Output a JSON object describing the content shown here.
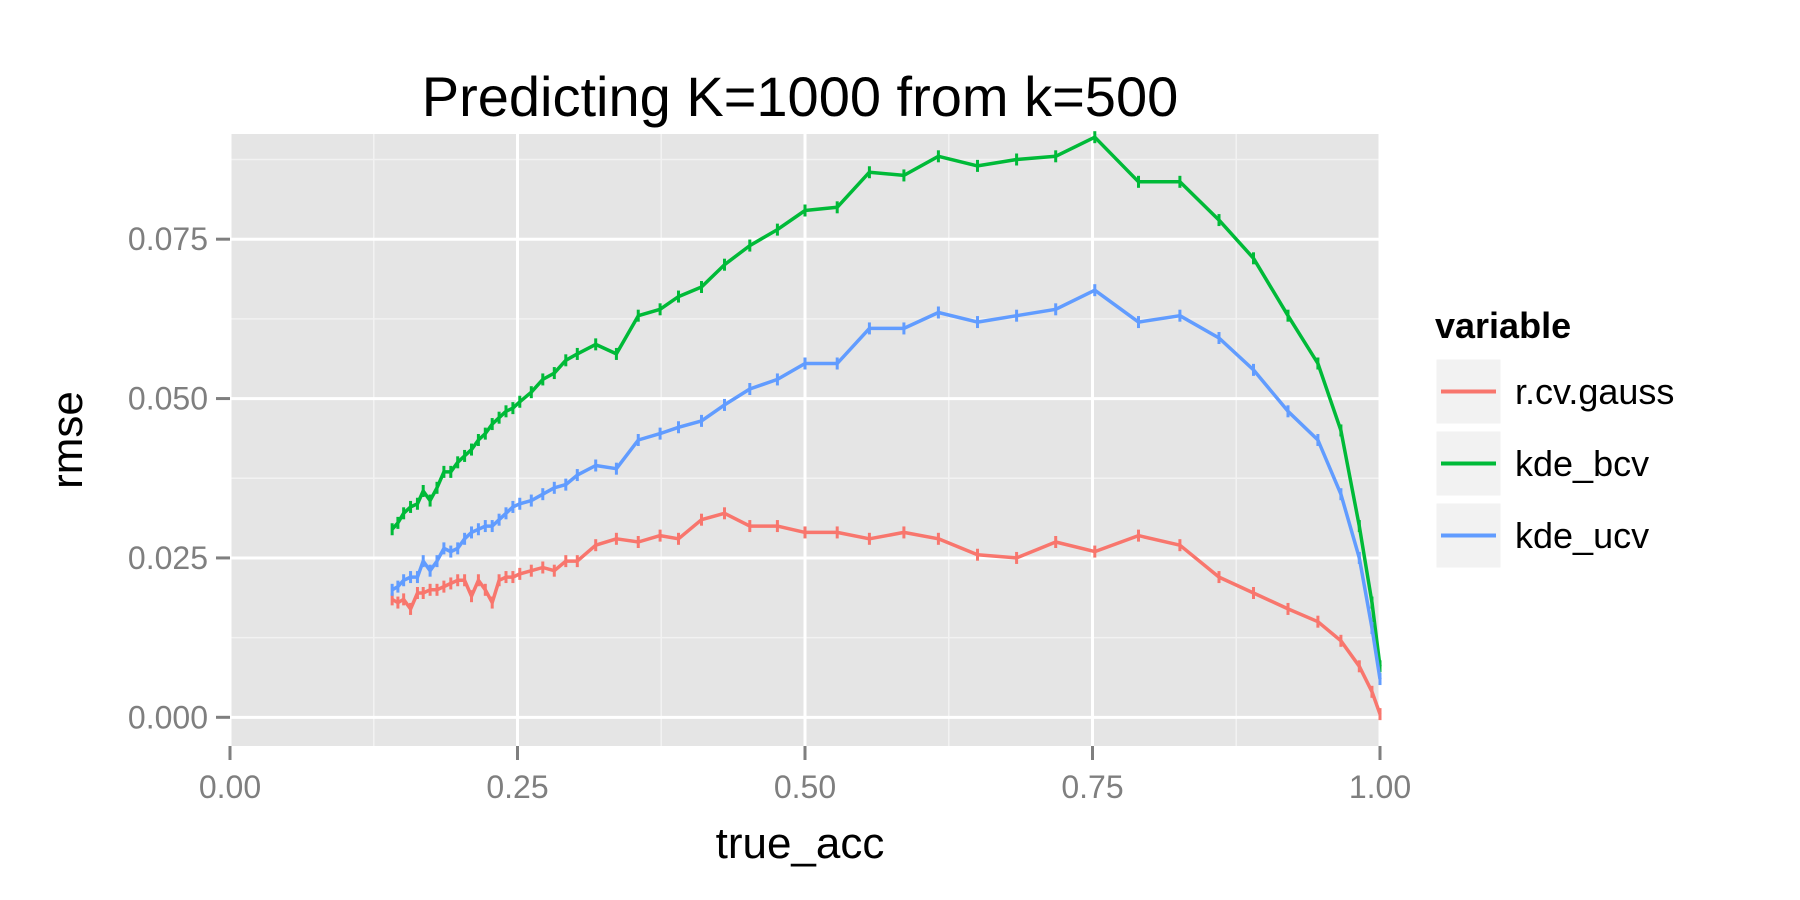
{
  "chart_data": {
    "type": "line",
    "title": "Predicting K=1000 from k=500",
    "xlabel": "true_acc",
    "ylabel": "rmse",
    "xlim": [
      0.0,
      1.0
    ],
    "ylim": [
      -0.0045,
      0.0915
    ],
    "x_ticks": [
      "0.00",
      "0.25",
      "0.50",
      "0.75",
      "1.00"
    ],
    "y_ticks": [
      "0.000",
      "0.025",
      "0.050",
      "0.075"
    ],
    "grid": true,
    "legend": {
      "title": "variable",
      "position": "right"
    },
    "series": [
      {
        "name": "r.cv.gauss",
        "color": "#F8766D",
        "x": [
          0.141,
          0.146,
          0.151,
          0.157,
          0.163,
          0.168,
          0.174,
          0.18,
          0.186,
          0.192,
          0.198,
          0.204,
          0.21,
          0.216,
          0.222,
          0.228,
          0.234,
          0.24,
          0.246,
          0.252,
          0.262,
          0.272,
          0.282,
          0.292,
          0.302,
          0.318,
          0.336,
          0.355,
          0.374,
          0.39,
          0.41,
          0.43,
          0.452,
          0.476,
          0.5,
          0.528,
          0.556,
          0.586,
          0.616,
          0.65,
          0.684,
          0.718,
          0.752,
          0.79,
          0.826,
          0.86,
          0.89,
          0.92,
          0.946,
          0.966,
          0.982,
          0.993,
          1.0
        ],
        "y": [
          0.0185,
          0.018,
          0.0185,
          0.017,
          0.0195,
          0.0195,
          0.02,
          0.02,
          0.0205,
          0.021,
          0.0215,
          0.0215,
          0.019,
          0.0215,
          0.02,
          0.018,
          0.0215,
          0.022,
          0.022,
          0.0225,
          0.023,
          0.0235,
          0.023,
          0.0245,
          0.0245,
          0.027,
          0.028,
          0.0275,
          0.0285,
          0.028,
          0.031,
          0.032,
          0.03,
          0.03,
          0.029,
          0.029,
          0.028,
          0.029,
          0.028,
          0.0255,
          0.025,
          0.0275,
          0.026,
          0.0285,
          0.027,
          0.022,
          0.0195,
          0.017,
          0.015,
          0.012,
          0.008,
          0.004,
          0.0005
        ]
      },
      {
        "name": "kde_bcv",
        "color": "#00BA38",
        "x": [
          0.141,
          0.146,
          0.151,
          0.157,
          0.163,
          0.168,
          0.174,
          0.18,
          0.186,
          0.192,
          0.198,
          0.204,
          0.21,
          0.216,
          0.222,
          0.228,
          0.234,
          0.24,
          0.246,
          0.252,
          0.262,
          0.272,
          0.282,
          0.292,
          0.302,
          0.318,
          0.336,
          0.355,
          0.374,
          0.39,
          0.41,
          0.43,
          0.452,
          0.476,
          0.5,
          0.528,
          0.556,
          0.586,
          0.616,
          0.65,
          0.684,
          0.718,
          0.752,
          0.79,
          0.826,
          0.86,
          0.89,
          0.92,
          0.946,
          0.966,
          0.982,
          0.993,
          1.0
        ],
        "y": [
          0.0295,
          0.0305,
          0.032,
          0.033,
          0.0335,
          0.0355,
          0.034,
          0.036,
          0.0385,
          0.0385,
          0.04,
          0.041,
          0.042,
          0.0435,
          0.0445,
          0.046,
          0.047,
          0.048,
          0.0485,
          0.0495,
          0.051,
          0.053,
          0.054,
          0.056,
          0.057,
          0.0585,
          0.057,
          0.063,
          0.064,
          0.066,
          0.0675,
          0.071,
          0.074,
          0.0765,
          0.0795,
          0.08,
          0.0855,
          0.085,
          0.088,
          0.0865,
          0.0875,
          0.088,
          0.091,
          0.084,
          0.084,
          0.078,
          0.072,
          0.063,
          0.0555,
          0.045,
          0.03,
          0.018,
          0.008
        ]
      },
      {
        "name": "kde_ucv",
        "color": "#619CFF",
        "x": [
          0.141,
          0.146,
          0.151,
          0.157,
          0.163,
          0.168,
          0.174,
          0.18,
          0.186,
          0.192,
          0.198,
          0.204,
          0.21,
          0.216,
          0.222,
          0.228,
          0.234,
          0.24,
          0.246,
          0.252,
          0.262,
          0.272,
          0.282,
          0.292,
          0.302,
          0.318,
          0.336,
          0.355,
          0.374,
          0.39,
          0.41,
          0.43,
          0.452,
          0.476,
          0.5,
          0.528,
          0.556,
          0.586,
          0.616,
          0.65,
          0.684,
          0.718,
          0.752,
          0.79,
          0.826,
          0.86,
          0.89,
          0.92,
          0.946,
          0.966,
          0.982,
          0.993,
          1.0
        ],
        "y": [
          0.02,
          0.0205,
          0.0215,
          0.022,
          0.022,
          0.0245,
          0.023,
          0.0245,
          0.0265,
          0.026,
          0.0265,
          0.028,
          0.029,
          0.0295,
          0.03,
          0.03,
          0.031,
          0.032,
          0.033,
          0.0335,
          0.034,
          0.035,
          0.036,
          0.0365,
          0.038,
          0.0395,
          0.039,
          0.0435,
          0.0445,
          0.0455,
          0.0465,
          0.049,
          0.0515,
          0.053,
          0.0555,
          0.0555,
          0.061,
          0.061,
          0.0635,
          0.062,
          0.063,
          0.064,
          0.067,
          0.062,
          0.063,
          0.0595,
          0.0545,
          0.048,
          0.0435,
          0.035,
          0.025,
          0.014,
          0.006
        ]
      }
    ]
  }
}
